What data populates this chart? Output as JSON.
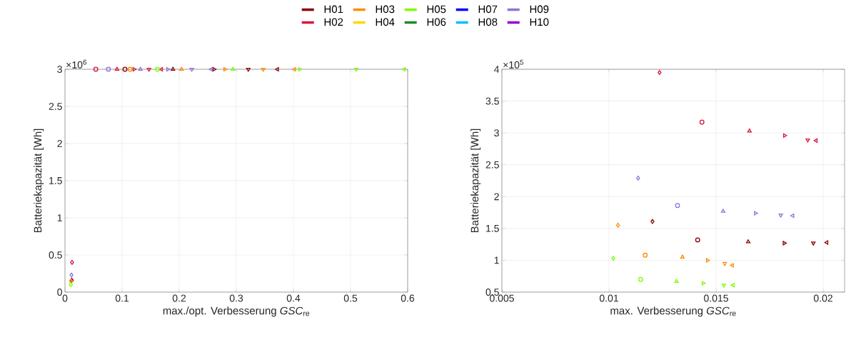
{
  "chart_data": [
    {
      "type": "scatter",
      "xlabel": "max./opt. Verbesserung  *GSC*$_{re}$",
      "ylabel": "Batteriekapazität [Wh]",
      "annotations": [
        "×10$^{6}$"
      ],
      "xlim": [
        0,
        0.6
      ],
      "ylim": [
        0,
        3
      ],
      "xticks": [
        0,
        0.1,
        0.2,
        0.3,
        0.4,
        0.5,
        0.6
      ],
      "yticks": [
        0,
        0.5,
        1,
        1.5,
        2,
        2.5,
        3
      ],
      "grid": true,
      "legend": "top",
      "series": [
        {
          "name": "H01",
          "color": "#8b0000",
          "x": [
            0.012,
            0.105,
            0.189,
            0.261,
            0.321,
            0.372
          ],
          "values": [
            0.16,
            3,
            3,
            3,
            3,
            3
          ]
        },
        {
          "name": "H02",
          "color": "#dc143c",
          "x": [
            0.0124,
            0.054,
            0.091,
            0.121,
            0.147,
            0.169
          ],
          "values": [
            0.4,
            3,
            3,
            3,
            3,
            3
          ]
        },
        {
          "name": "H03",
          "color": "#ff8c00",
          "x": [
            0.0104,
            0.114,
            0.204,
            0.28,
            0.347,
            0.402
          ],
          "values": [
            0.15,
            3,
            3,
            3,
            3,
            3
          ]
        },
        {
          "name": "H04",
          "color": "#ffd700"
        },
        {
          "name": "H05",
          "color": "#7cfc00",
          "x": [
            0.0102,
            0.162,
            0.294,
            0.411,
            0.51,
            0.594
          ],
          "values": [
            0.1,
            3,
            3,
            3,
            3,
            3
          ]
        },
        {
          "name": "H06",
          "color": "#228b22"
        },
        {
          "name": "H07",
          "color": "#0000ff"
        },
        {
          "name": "H08",
          "color": "#00bfff"
        },
        {
          "name": "H09",
          "color": "#9370db",
          "x": [
            0.0114,
            0.076,
            0.132,
            0.18,
            0.222,
            0.256
          ],
          "values": [
            0.23,
            3,
            3,
            3,
            3,
            3
          ]
        },
        {
          "name": "H10",
          "color": "#9400d3"
        }
      ]
    },
    {
      "type": "scatter",
      "xlabel": "max. Verbesserung  *GSC*$_{re}$",
      "ylabel": "Batteriekapazität [Wh]",
      "annotations": [
        "×10$^{5}$"
      ],
      "xlim": [
        0.005,
        0.021
      ],
      "ylim": [
        0.5,
        4
      ],
      "xticks": [
        0.005,
        0.01,
        0.015,
        0.02
      ],
      "yticks": [
        0.5,
        1,
        1.5,
        2,
        2.5,
        3,
        3.5,
        4
      ],
      "grid": true,
      "series": [
        {
          "color": "#8b0000",
          "x": [
            0.01203,
            0.01414,
            0.0165,
            0.01818,
            0.01954,
            0.02017
          ],
          "values": [
            1.61,
            1.32,
            1.29,
            1.27,
            1.27,
            1.28
          ]
        },
        {
          "color": "#dc143c",
          "x": [
            0.01236,
            0.01434,
            0.01656,
            0.0182,
            0.01928,
            0.01967
          ],
          "values": [
            3.95,
            3.17,
            3.03,
            2.96,
            2.89,
            2.88
          ]
        },
        {
          "color": "#ff8c00",
          "x": [
            0.01042,
            0.01169,
            0.01343,
            0.0146,
            0.01541,
            0.01576
          ],
          "values": [
            1.55,
            1.08,
            1.05,
            1.0,
            0.95,
            0.92
          ]
        },
        {
          "color": "#7cfc00",
          "x": [
            0.0102,
            0.01148,
            0.01315,
            0.0144,
            0.01536,
            0.0158
          ],
          "values": [
            1.03,
            0.7,
            0.67,
            0.64,
            0.61,
            0.61
          ]
        },
        {
          "color": "#9370db",
          "x": [
            0.01136,
            0.0132,
            0.01533,
            0.01684,
            0.01802,
            0.01858
          ],
          "values": [
            2.29,
            1.86,
            1.77,
            1.74,
            1.71,
            1.7
          ]
        }
      ]
    }
  ]
}
